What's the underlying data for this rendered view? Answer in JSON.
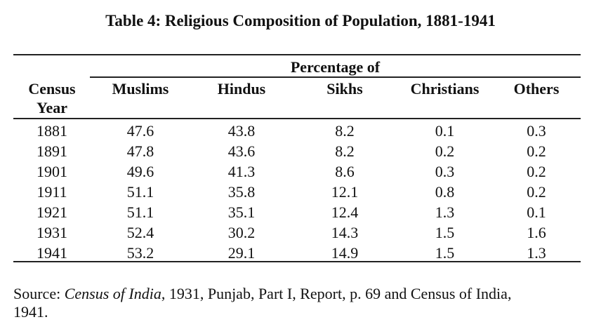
{
  "table": {
    "title": "Table 4: Religious Composition of Population, 1881-1941",
    "group_header": "Percentage of",
    "year_header_line1": "Census",
    "year_header_line2": "Year",
    "columns": [
      "Muslims",
      "Hindus",
      "Sikhs",
      "Christians",
      "Others"
    ],
    "rows": [
      {
        "year": "1881",
        "values": [
          "47.6",
          "43.8",
          "8.2",
          "0.1",
          "0.3"
        ]
      },
      {
        "year": "1891",
        "values": [
          "47.8",
          "43.6",
          "8.2",
          "0.2",
          "0.2"
        ]
      },
      {
        "year": "1901",
        "values": [
          "49.6",
          "41.3",
          "8.6",
          "0.3",
          "0.2"
        ]
      },
      {
        "year": "1911",
        "values": [
          "51.1",
          "35.8",
          "12.1",
          "0.8",
          "0.2"
        ]
      },
      {
        "year": "1921",
        "values": [
          "51.1",
          "35.1",
          "12.4",
          "1.3",
          "0.1"
        ]
      },
      {
        "year": "1931",
        "values": [
          "52.4",
          "30.2",
          "14.3",
          "1.5",
          "1.6"
        ]
      },
      {
        "year": "1941",
        "values": [
          "53.2",
          "29.1",
          "14.9",
          "1.5",
          "1.3"
        ]
      }
    ]
  },
  "source": {
    "prefix": "Source: ",
    "italic": "Census of India",
    "line1_rest": ", 1931, Punjab, Part I, Report, p. 69 and Census of India,",
    "line2": "1941."
  }
}
